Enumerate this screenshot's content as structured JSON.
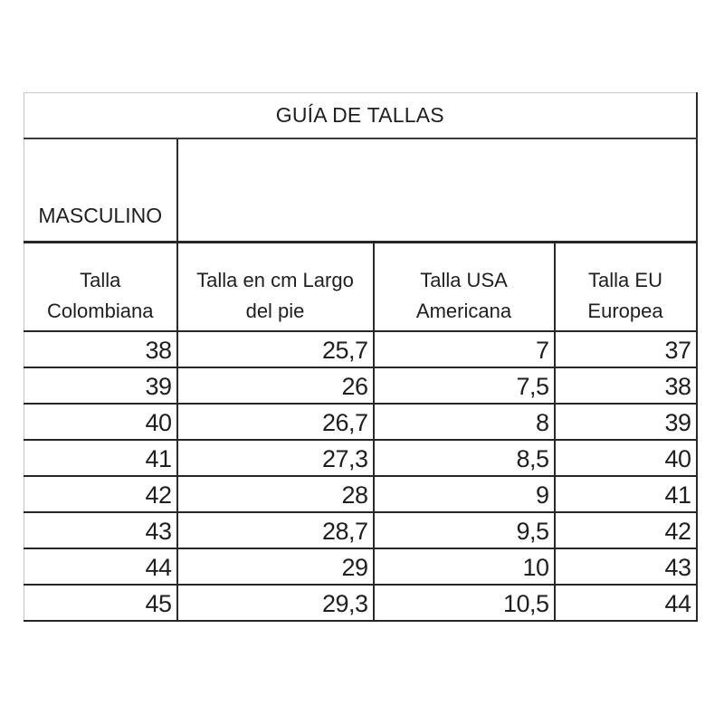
{
  "table": {
    "title": "GUÍA DE TALLAS",
    "section_label": "MASCULINO",
    "columns": [
      {
        "line1": "Talla",
        "line2": "Colombiana"
      },
      {
        "line1": "Talla en cm Largo",
        "line2": "del pie"
      },
      {
        "line1": "Talla USA",
        "line2": "Americana"
      },
      {
        "line1": "Talla EU",
        "line2": "Europea"
      }
    ],
    "rows": [
      [
        "38",
        "25,7",
        "7",
        "37"
      ],
      [
        "39",
        "26",
        "7,5",
        "38"
      ],
      [
        "40",
        "26,7",
        "8",
        "39"
      ],
      [
        "41",
        "27,3",
        "8,5",
        "40"
      ],
      [
        "42",
        "28",
        "9",
        "41"
      ],
      [
        "43",
        "28,7",
        "9,5",
        "42"
      ],
      [
        "44",
        "29",
        "10",
        "43"
      ],
      [
        "45",
        "29,3",
        "10,5",
        "44"
      ]
    ],
    "colors": {
      "border_dark": "#2a2a2a",
      "border_light": "#c6c6c6",
      "text": "#1f1f1f",
      "background": "#ffffff"
    }
  }
}
